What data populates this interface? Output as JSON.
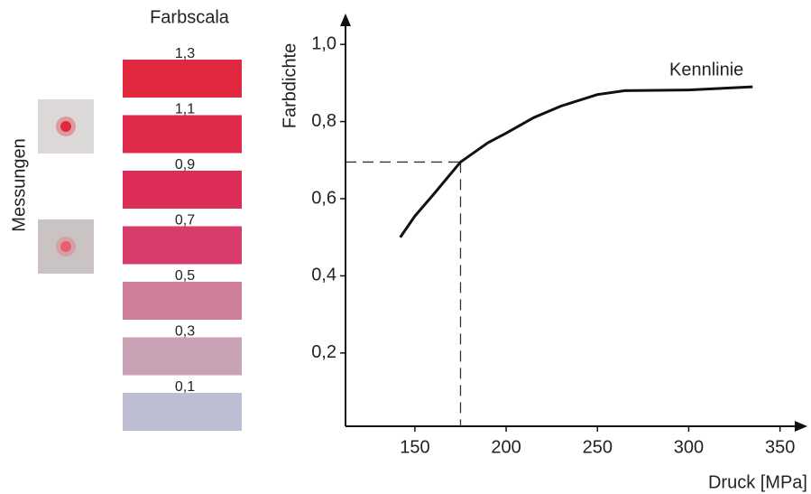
{
  "measurements": {
    "label": "Messungen",
    "background_colors": [
      "#dcd8d8",
      "#c9c3c3"
    ],
    "dot_colors": [
      "#e2283c",
      "#e8606e"
    ]
  },
  "scale": {
    "title": "Farbscala",
    "labels": [
      "1,3",
      "1,1",
      "0,9",
      "0,7",
      "0,5",
      "0,3",
      "0,1"
    ],
    "colors": [
      "#e2283f",
      "#e02a4b",
      "#dc2c58",
      "#d83c6a",
      "#cf7e9b",
      "#c9a2b6",
      "#bdbdd3"
    ]
  },
  "chart_data": {
    "type": "line",
    "y_label": "Farbdichte",
    "x_label": "Druck [MPa]",
    "x": [
      142,
      150,
      160,
      175,
      190,
      200,
      215,
      230,
      250,
      265,
      300,
      335
    ],
    "series": [
      {
        "name": "Kennlinie",
        "color": "#111111",
        "values": [
          0.5,
          0.555,
          0.61,
          0.695,
          0.745,
          0.77,
          0.81,
          0.84,
          0.87,
          0.88,
          0.882,
          0.89
        ]
      }
    ],
    "guide": {
      "x": 175,
      "y": 0.695
    },
    "xlim": [
      112,
      365
    ],
    "ylim": [
      0.01,
      1.08
    ],
    "xticks": [
      150,
      200,
      250,
      300,
      350
    ],
    "yticks": [
      {
        "value": 0.2,
        "label": "0,2"
      },
      {
        "value": 0.4,
        "label": "0,4"
      },
      {
        "value": 0.6,
        "label": "0,6"
      },
      {
        "value": 0.8,
        "label": "0,8"
      },
      {
        "value": 1.0,
        "label": "1,0"
      }
    ]
  }
}
